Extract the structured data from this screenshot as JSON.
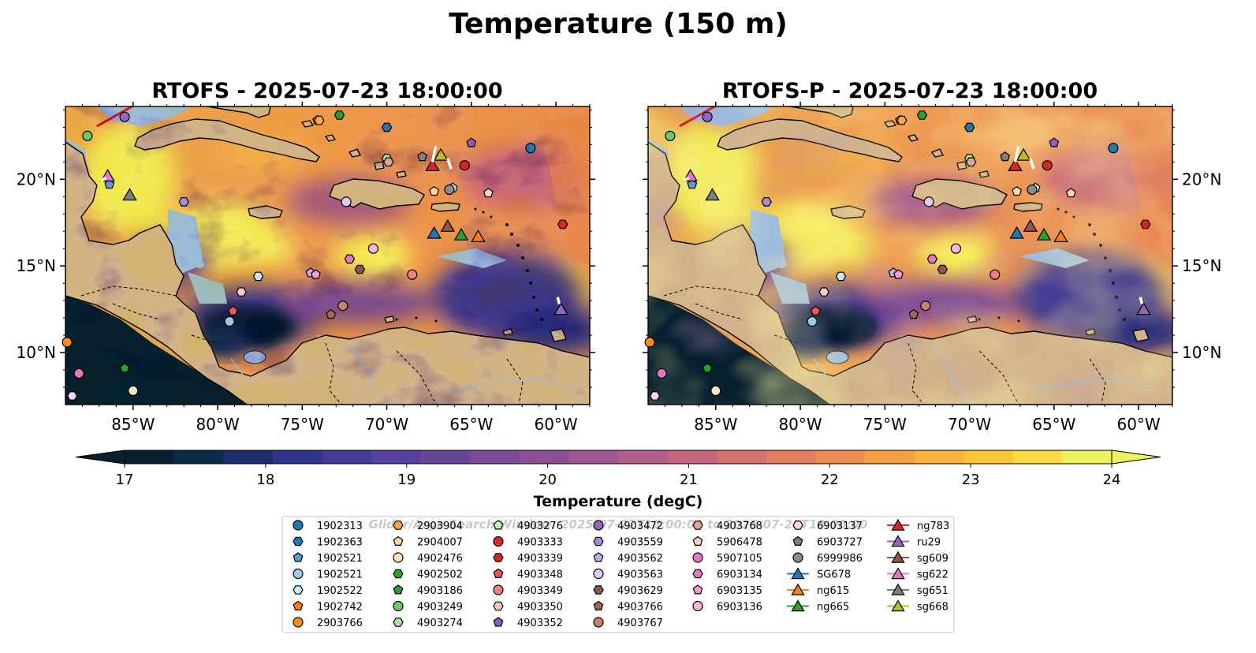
{
  "figure": {
    "title": "Temperature (150 m)",
    "watermark": "Glider/Argo Search Window: 2025-07-22T18:00:00 to 2025-07-23T18:00:00"
  },
  "panels": [
    {
      "title": "RTOFS - 2025-07-23 18:00:00"
    },
    {
      "title": "RTOFS-P - 2025-07-23 18:00:00"
    }
  ],
  "axes": {
    "lon_labels": [
      "85°W",
      "80°W",
      "75°W",
      "70°W",
      "65°W",
      "60°W"
    ],
    "lat_labels": [
      "20°N",
      "15°N",
      "10°N"
    ]
  },
  "colorbar": {
    "label": "Temperature (degC)",
    "ticks": [
      "17",
      "18",
      "19",
      "20",
      "21",
      "22",
      "23",
      "24"
    ],
    "vmin": 16.5,
    "vmax": 24.5,
    "extend": "both",
    "colors": [
      "#04202f",
      "#0c2a4a",
      "#1d2d6b",
      "#30338a",
      "#453a97",
      "#583f9a",
      "#6a4499",
      "#7c4a97",
      "#8d5094",
      "#9f578f",
      "#b25e87",
      "#c4667c",
      "#d4706f",
      "#e37d5f",
      "#ee8d50",
      "#f59f44",
      "#f9b23b",
      "#fac638",
      "#f7dc3c",
      "#ecf25e"
    ]
  },
  "legend": {
    "columns": [
      [
        {
          "label": "1902313",
          "marker": "circle",
          "color": "#1f77b4"
        },
        {
          "label": "1902363",
          "marker": "hexagon",
          "color": "#1f77b4"
        },
        {
          "label": "1902521",
          "marker": "pentagon",
          "color": "#5a9fd4"
        },
        {
          "label": "1902521",
          "marker": "circle",
          "color": "#9ecae1"
        },
        {
          "label": "1902522",
          "marker": "hexagon",
          "color": "#c6e6f8"
        },
        {
          "label": "1902742",
          "marker": "pentagon",
          "color": "#ff7f0e"
        },
        {
          "label": "2903766",
          "marker": "circle",
          "color": "#ff8c1a"
        }
      ],
      [
        {
          "label": "2903904",
          "marker": "hexagon",
          "color": "#ffa54c"
        },
        {
          "label": "2904007",
          "marker": "pentagon",
          "color": "#ffd8a8"
        },
        {
          "label": "4902476",
          "marker": "circle",
          "color": "#ffe3c2"
        },
        {
          "label": "4902502",
          "marker": "hexagon",
          "color": "#2ca02c"
        },
        {
          "label": "4903186",
          "marker": "pentagon",
          "color": "#2ca02c"
        },
        {
          "label": "4903249",
          "marker": "circle",
          "color": "#6acc64"
        },
        {
          "label": "4903274",
          "marker": "hexagon",
          "color": "#a8e3a0"
        }
      ],
      [
        {
          "label": "4903276",
          "marker": "pentagon",
          "color": "#c9f0c0"
        },
        {
          "label": "4903333",
          "marker": "circle",
          "color": "#d62728"
        },
        {
          "label": "4903339",
          "marker": "hexagon",
          "color": "#d62728"
        },
        {
          "label": "4903348",
          "marker": "pentagon",
          "color": "#e8575a"
        },
        {
          "label": "4903349",
          "marker": "circle",
          "color": "#f08080"
        },
        {
          "label": "4903350",
          "marker": "hexagon",
          "color": "#fbc8c8"
        },
        {
          "label": "4903352",
          "marker": "pentagon",
          "color": "#8c5fbf"
        }
      ],
      [
        {
          "label": "4903472",
          "marker": "circle",
          "color": "#9467bd"
        },
        {
          "label": "4903559",
          "marker": "hexagon",
          "color": "#a98ad6"
        },
        {
          "label": "4903562",
          "marker": "pentagon",
          "color": "#c5b0e6"
        },
        {
          "label": "4903563",
          "marker": "circle",
          "color": "#ddcbf2"
        },
        {
          "label": "4903629",
          "marker": "hexagon",
          "color": "#8c564b"
        },
        {
          "label": "4903766",
          "marker": "pentagon",
          "color": "#a0685a"
        },
        {
          "label": "4903767",
          "marker": "circle",
          "color": "#c4836f"
        }
      ],
      [
        {
          "label": "4903768",
          "marker": "hexagon",
          "color": "#dba896"
        },
        {
          "label": "5906478",
          "marker": "pentagon",
          "color": "#f5d4c8"
        },
        {
          "label": "5907105",
          "marker": "circle",
          "color": "#e377c2"
        },
        {
          "label": "6903134",
          "marker": "hexagon",
          "color": "#e377c2"
        },
        {
          "label": "6903135",
          "marker": "pentagon",
          "color": "#f59ad6"
        },
        {
          "label": "6903136",
          "marker": "circle",
          "color": "#f7b6df"
        }
      ],
      [
        {
          "label": "6903137",
          "marker": "hexagon",
          "color": "#fbd5ec"
        },
        {
          "label": "6903727",
          "marker": "pentagon",
          "color": "#7f7f7f"
        },
        {
          "label": "6999986",
          "marker": "circle",
          "color": "#8c8c8c"
        },
        {
          "label": "SG678",
          "marker": "triangle",
          "color": "#1f77b4"
        },
        {
          "label": "ng615",
          "marker": "triangle",
          "color": "#ff7f0e"
        },
        {
          "label": "ng665",
          "marker": "triangle",
          "color": "#2ca02c"
        }
      ],
      [
        {
          "label": "ng783",
          "marker": "triangle",
          "color": "#d62728"
        },
        {
          "label": "ru29",
          "marker": "triangle",
          "color": "#9467bd"
        },
        {
          "label": "sg609",
          "marker": "triangle",
          "color": "#8c564b"
        },
        {
          "label": "sg622",
          "marker": "triangle",
          "color": "#e377c2"
        },
        {
          "label": "sg651",
          "marker": "triangle",
          "color": "#7f7f7f"
        },
        {
          "label": "sg668",
          "marker": "triangle",
          "color": "#bcbd22"
        }
      ]
    ]
  },
  "observations": [
    {
      "id": "1902313",
      "lon": -61.5,
      "lat": 21.8
    },
    {
      "id": "1902363",
      "lon": -70.0,
      "lat": 23.0
    },
    {
      "id": "1902521",
      "lon": -86.4,
      "lat": 19.7
    },
    {
      "id": "1902521",
      "lon": -79.3,
      "lat": 11.8
    },
    {
      "id": "1902522",
      "lon": -77.6,
      "lat": 14.4
    },
    {
      "id": "1902742",
      "lon": -74.1,
      "lat": 23.4
    },
    {
      "id": "2903766",
      "lon": -88.9,
      "lat": 10.6
    },
    {
      "id": "2903904",
      "lon": -74.0,
      "lat": 23.4
    },
    {
      "id": "2904007",
      "lon": -67.2,
      "lat": 19.3
    },
    {
      "id": "4902476",
      "lon": -85.0,
      "lat": 7.8
    },
    {
      "id": "4902502",
      "lon": -72.8,
      "lat": 23.7
    },
    {
      "id": "4903186",
      "lon": -85.5,
      "lat": 9.1
    },
    {
      "id": "4903249",
      "lon": -87.7,
      "lat": 22.5
    },
    {
      "id": "4903274",
      "lon": -70.0,
      "lat": 21.2
    },
    {
      "id": "4903276",
      "lon": -66.1,
      "lat": 19.5
    },
    {
      "id": "4903333",
      "lon": -65.4,
      "lat": 20.8
    },
    {
      "id": "4903339",
      "lon": -59.6,
      "lat": 17.4
    },
    {
      "id": "4903348",
      "lon": -79.1,
      "lat": 12.4
    },
    {
      "id": "4903349",
      "lon": -68.5,
      "lat": 14.5
    },
    {
      "id": "4903350",
      "lon": -78.6,
      "lat": 13.5
    },
    {
      "id": "4903352",
      "lon": -65.0,
      "lat": 22.1
    },
    {
      "id": "4903472",
      "lon": -85.5,
      "lat": 23.6
    },
    {
      "id": "4903559",
      "lon": -82.0,
      "lat": 18.7
    },
    {
      "id": "4903562",
      "lon": -74.5,
      "lat": 14.6
    },
    {
      "id": "4903563",
      "lon": -72.4,
      "lat": 18.7
    },
    {
      "id": "4903629",
      "lon": -71.6,
      "lat": 14.8
    },
    {
      "id": "4903766",
      "lon": -73.3,
      "lat": 12.2
    },
    {
      "id": "4903767",
      "lon": -72.6,
      "lat": 12.7
    },
    {
      "id": "4903768",
      "lon": -69.9,
      "lat": 21.0
    },
    {
      "id": "5906478",
      "lon": -64.0,
      "lat": 19.2
    },
    {
      "id": "5907105",
      "lon": -88.2,
      "lat": 8.8
    },
    {
      "id": "6903134",
      "lon": -72.2,
      "lat": 15.4
    },
    {
      "id": "6903135",
      "lon": -74.2,
      "lat": 14.5
    },
    {
      "id": "6903136",
      "lon": -70.8,
      "lat": 16.0
    },
    {
      "id": "6903137",
      "lon": -88.6,
      "lat": 7.5
    },
    {
      "id": "6903727",
      "lon": -67.9,
      "lat": 21.3
    },
    {
      "id": "6999986",
      "lon": -66.3,
      "lat": 19.4
    },
    {
      "id": "SG678",
      "lon": -67.2,
      "lat": 16.9
    },
    {
      "id": "ng615",
      "lon": -64.6,
      "lat": 16.7
    },
    {
      "id": "ng665",
      "lon": -65.6,
      "lat": 16.8
    },
    {
      "id": "ng783",
      "lon": -67.3,
      "lat": 20.8
    },
    {
      "id": "ru29",
      "lon": -59.7,
      "lat": 12.5
    },
    {
      "id": "sg609",
      "lon": -66.4,
      "lat": 17.3
    },
    {
      "id": "sg622",
      "lon": -86.5,
      "lat": 20.2
    },
    {
      "id": "sg651",
      "lon": -85.2,
      "lat": 19.1
    },
    {
      "id": "sg668",
      "lon": -66.8,
      "lat": 21.4
    }
  ]
}
